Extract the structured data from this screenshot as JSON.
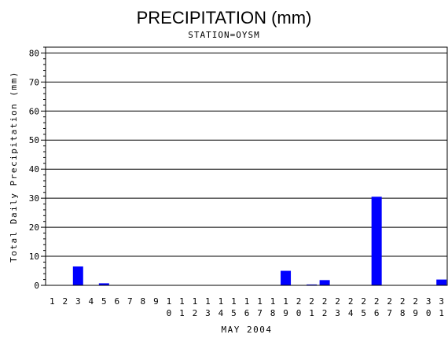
{
  "chart_data": {
    "type": "bar",
    "title": "PRECIPITATION (mm)",
    "subtitle": "STATION=OYSM",
    "xlabel": "MAY 2004",
    "ylabel": "Total Daily Precipitation (mm)",
    "ylim": [
      0,
      82
    ],
    "yticks": [
      0,
      10,
      20,
      30,
      40,
      50,
      60,
      70,
      80
    ],
    "grid": true,
    "bar_color": "#0000ff",
    "categories": [
      "1",
      "2",
      "3",
      "4",
      "5",
      "6",
      "7",
      "8",
      "9",
      "10",
      "11",
      "12",
      "13",
      "14",
      "15",
      "16",
      "17",
      "18",
      "19",
      "20",
      "21",
      "22",
      "23",
      "24",
      "25",
      "26",
      "27",
      "28",
      "29",
      "30",
      "31"
    ],
    "values": [
      0,
      0,
      6.5,
      0,
      0.7,
      0,
      0,
      0,
      0,
      0,
      0,
      0,
      0,
      0,
      0,
      0,
      0,
      0,
      5,
      0,
      0.3,
      1.8,
      0,
      0,
      0,
      30.5,
      0,
      0,
      0,
      0,
      2
    ]
  }
}
